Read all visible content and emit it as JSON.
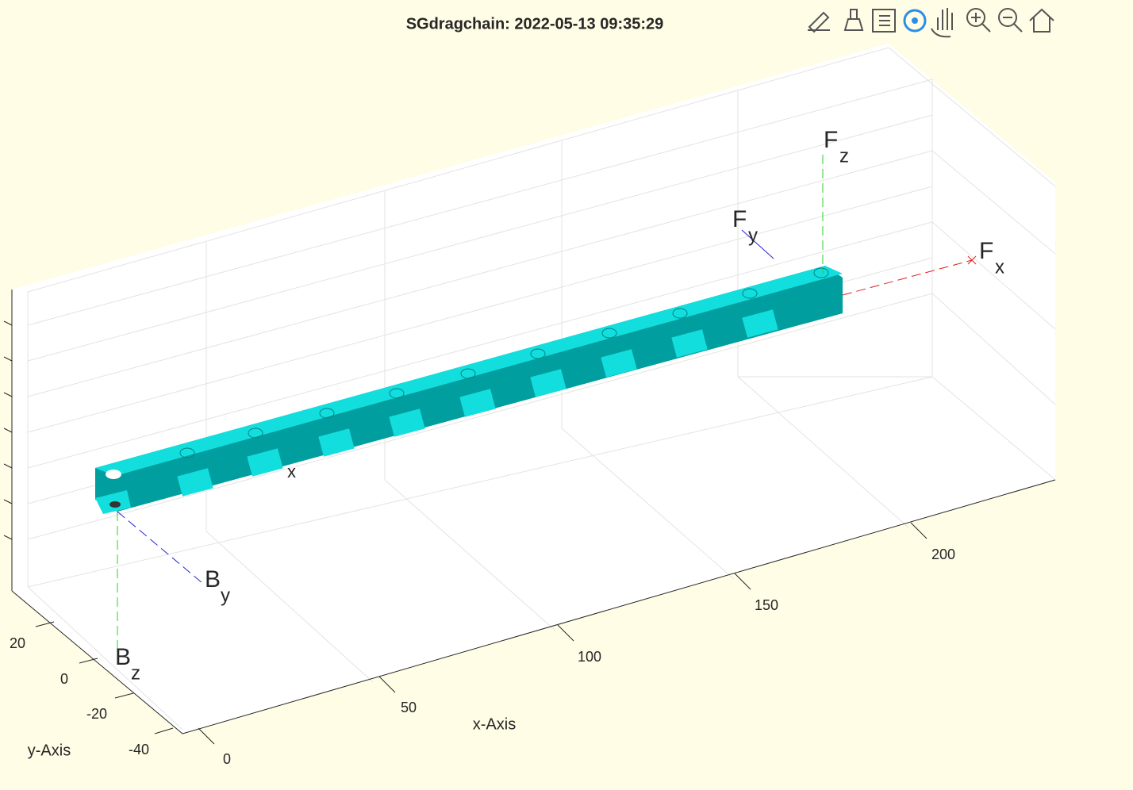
{
  "title": "SGdragchain: 2022-05-13 09:35:29",
  "x_axis": {
    "label": "x-Axis",
    "ticks": [
      0,
      50,
      100,
      150,
      200
    ]
  },
  "y_axis": {
    "label": "y-Axis",
    "ticks": [
      20,
      0,
      -20,
      -40
    ]
  },
  "point_labels": [
    {
      "main": "F",
      "sub": "z"
    },
    {
      "main": "F",
      "sub": "y"
    },
    {
      "main": "F",
      "sub": "x"
    },
    {
      "main": "B",
      "sub": "y"
    },
    {
      "main": "B",
      "sub": "z"
    },
    {
      "sub": "x"
    }
  ]
}
